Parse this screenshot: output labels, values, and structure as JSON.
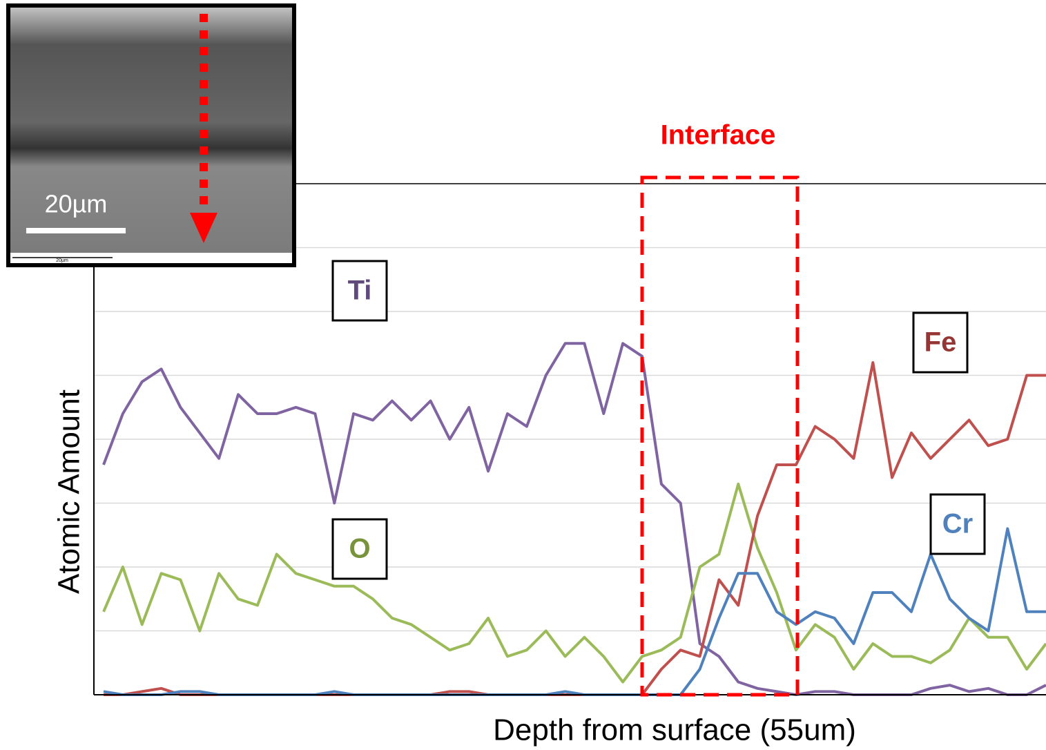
{
  "chart_data": {
    "type": "line",
    "annotation": "Interface",
    "x_label": "Depth from surface (55um)",
    "y_label": "Atomic Amount",
    "ylim": [
      0,
      8
    ],
    "ygrid": [
      1,
      2,
      3,
      4,
      5,
      6,
      7,
      8
    ],
    "grid": true,
    "series": [
      {
        "name": "Ti",
        "color": "#8064a2",
        "values": [
          3.6,
          4.4,
          4.9,
          5.1,
          4.5,
          4.1,
          3.7,
          4.7,
          4.4,
          4.4,
          4.5,
          4.4,
          3.0,
          4.4,
          4.3,
          4.6,
          4.3,
          4.6,
          4.0,
          4.5,
          3.5,
          4.4,
          4.2,
          5.0,
          5.5,
          5.5,
          4.4,
          5.5,
          5.3,
          3.3,
          3.0,
          0.8,
          0.6,
          0.2,
          0.1,
          0.05,
          0,
          0.05,
          0.05,
          0,
          0,
          0,
          0,
          0.1,
          0.15,
          0.05,
          0.1,
          0,
          0,
          0.15
        ]
      },
      {
        "name": "O",
        "color": "#9bbb59",
        "values": [
          1.3,
          2.0,
          1.1,
          1.9,
          1.8,
          1.0,
          1.9,
          1.5,
          1.4,
          2.2,
          1.9,
          1.8,
          1.7,
          1.7,
          1.5,
          1.2,
          1.1,
          0.9,
          0.7,
          0.8,
          1.2,
          0.6,
          0.7,
          1.0,
          0.6,
          0.9,
          0.6,
          0.2,
          0.6,
          0.7,
          0.9,
          2.0,
          2.2,
          3.3,
          2.3,
          1.6,
          0.7,
          1.1,
          0.9,
          0.4,
          0.8,
          0.6,
          0.6,
          0.5,
          0.7,
          1.2,
          0.9,
          0.9,
          0.4,
          0.8
        ]
      },
      {
        "name": "Fe",
        "color": "#c0504d",
        "values": [
          0,
          0,
          0.05,
          0.1,
          0,
          0,
          0,
          0,
          0,
          0,
          0,
          0,
          0,
          0,
          0,
          0,
          0,
          0,
          0.05,
          0.05,
          0,
          0,
          0,
          0,
          0,
          0,
          0,
          0,
          0,
          0.4,
          0.7,
          0.6,
          1.8,
          1.4,
          2.8,
          3.6,
          3.6,
          4.2,
          4.0,
          3.7,
          5.2,
          3.4,
          4.1,
          3.7,
          4.0,
          4.3,
          3.9,
          4.0,
          5.0,
          5.0
        ]
      },
      {
        "name": "Cr",
        "color": "#4f81bd",
        "values": [
          0.05,
          0,
          0,
          0,
          0.05,
          0.05,
          0,
          0,
          0,
          0,
          0,
          0,
          0.05,
          0,
          0,
          0,
          0,
          0,
          0,
          0,
          0,
          0,
          0,
          0,
          0.05,
          0,
          0,
          0,
          0,
          0,
          0,
          0.4,
          1.2,
          1.9,
          1.9,
          1.3,
          1.1,
          1.3,
          1.2,
          0.8,
          1.6,
          1.6,
          1.3,
          2.2,
          1.5,
          1.2,
          1.0,
          2.6,
          1.3,
          1.3
        ]
      }
    ]
  },
  "inset": {
    "scale_label": "20µm"
  }
}
